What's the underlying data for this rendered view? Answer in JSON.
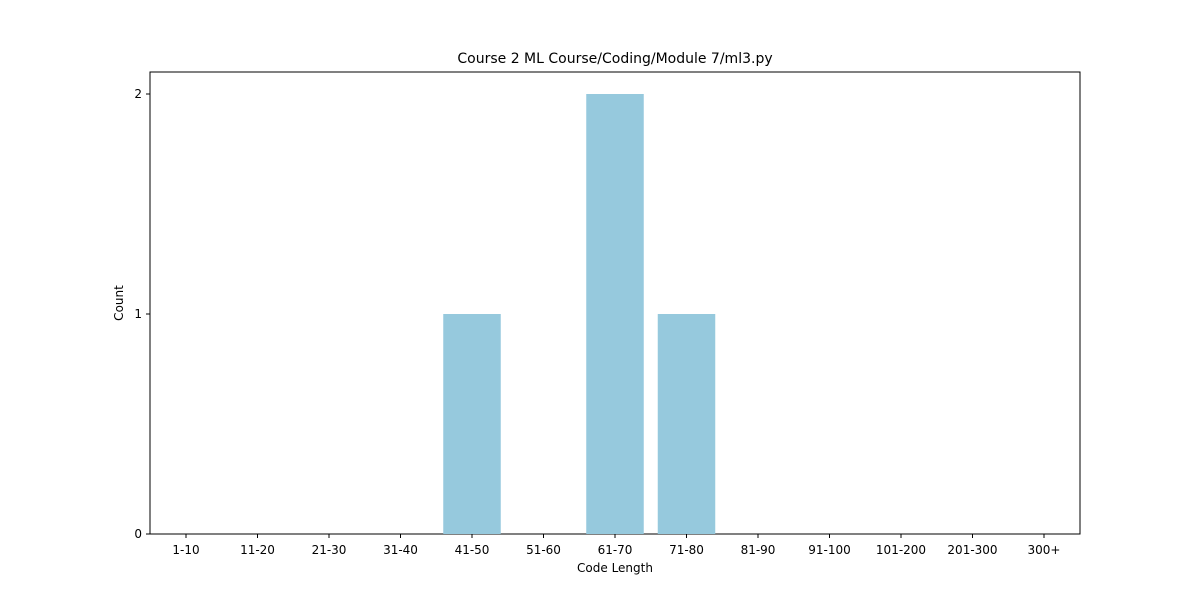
{
  "chart_data": {
    "type": "bar",
    "title": "Course 2 ML Course/Coding/Module 7/ml3.py",
    "xlabel": "Code Length",
    "ylabel": "Count",
    "categories": [
      "1-10",
      "11-20",
      "21-30",
      "31-40",
      "41-50",
      "51-60",
      "61-70",
      "71-80",
      "81-90",
      "91-100",
      "101-200",
      "201-300",
      "300+"
    ],
    "values": [
      0,
      0,
      0,
      0,
      1,
      0,
      2,
      1,
      0,
      0,
      0,
      0,
      0
    ],
    "ylim": [
      0,
      2.1
    ],
    "yticks": [
      0,
      1,
      2
    ],
    "grid": false,
    "bar_color": "#96c9dd"
  }
}
